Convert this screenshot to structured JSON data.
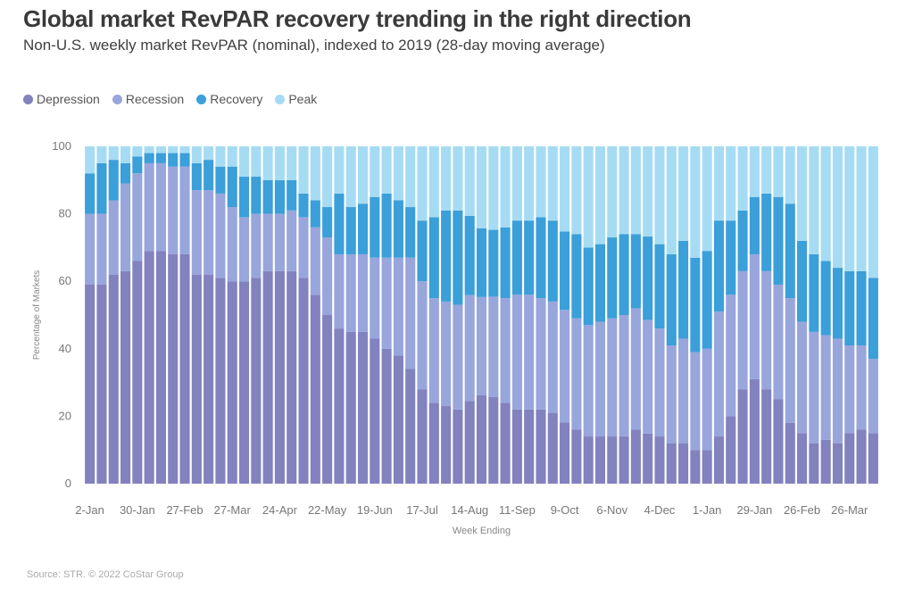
{
  "chart_data": {
    "type": "bar",
    "stacked": true,
    "title": "Global market RevPAR recovery trending in the right direction",
    "subtitle": "Non-U.S. weekly market RevPAR (nominal), indexed to 2019 (28-day moving average)",
    "xlabel": "Week Ending",
    "ylabel": "Percentage of Markets",
    "ylim": [
      0,
      100
    ],
    "yticks": [
      0,
      20,
      40,
      60,
      80,
      100
    ],
    "x_tick_labels": [
      "2-Jan",
      "30-Jan",
      "27-Feb",
      "27-Mar",
      "24-Apr",
      "22-May",
      "19-Jun",
      "17-Jul",
      "14-Aug",
      "11-Sep",
      "9-Oct",
      "6-Nov",
      "4-Dec",
      "1-Jan",
      "29-Jan",
      "26-Feb",
      "26-Mar"
    ],
    "x_tick_every": 4,
    "legend_position": "top-left",
    "series": [
      {
        "name": "Depression",
        "color": "#8282bf",
        "values": [
          59,
          59,
          62,
          63,
          66,
          69,
          69,
          68,
          68,
          62,
          62,
          61,
          60,
          60,
          61,
          63,
          63,
          63,
          61,
          56,
          50,
          46,
          45,
          45,
          43,
          40,
          38,
          34,
          28,
          24,
          23,
          22,
          25,
          27,
          26,
          24,
          22,
          22,
          22,
          21,
          18,
          16,
          14,
          14,
          14,
          14,
          16,
          15,
          14,
          12,
          12,
          10,
          10,
          14,
          20,
          28,
          31,
          28,
          25,
          18,
          15,
          12,
          13,
          12,
          15,
          16,
          15
        ]
      },
      {
        "name": "Recession",
        "color": "#98a6dc",
        "values": [
          21,
          21,
          22,
          26,
          26,
          26,
          26,
          26,
          26,
          25,
          25,
          25,
          22,
          19,
          19,
          17,
          17,
          18,
          18,
          20,
          23,
          22,
          23,
          23,
          24,
          27,
          29,
          33,
          32,
          31,
          31,
          31,
          32,
          30,
          30,
          31,
          34,
          34,
          33,
          33,
          33,
          33,
          33,
          34,
          35,
          36,
          36,
          34,
          32,
          29,
          31,
          29,
          30,
          37,
          36,
          35,
          37,
          35,
          34,
          37,
          33,
          33,
          31,
          31,
          26,
          25,
          22
        ]
      },
      {
        "name": "Recovery",
        "color": "#3b9fd9",
        "values": [
          12,
          15,
          12,
          6,
          5,
          3,
          3,
          4,
          4,
          8,
          9,
          8,
          12,
          12,
          11,
          10,
          10,
          9,
          7,
          8,
          9,
          18,
          14,
          15,
          18,
          19,
          17,
          15,
          18,
          24,
          27,
          28,
          24,
          21,
          20,
          21,
          22,
          22,
          24,
          24,
          23,
          25,
          23,
          23,
          24,
          24,
          22,
          25,
          25,
          27,
          29,
          28,
          29,
          27,
          22,
          18,
          17,
          23,
          26,
          28,
          24,
          23,
          22,
          21,
          22,
          22,
          24
        ]
      },
      {
        "name": "Peak",
        "color": "#a6dcf3",
        "values": [
          8,
          5,
          4,
          5,
          3,
          2,
          2,
          2,
          2,
          5,
          4,
          6,
          6,
          9,
          9,
          10,
          10,
          10,
          14,
          16,
          18,
          14,
          18,
          17,
          15,
          14,
          16,
          18,
          22,
          21,
          19,
          19,
          21,
          25,
          25,
          24,
          22,
          22,
          21,
          22,
          25,
          26,
          30,
          29,
          27,
          26,
          26,
          27,
          29,
          32,
          28,
          33,
          31,
          22,
          22,
          19,
          15,
          14,
          15,
          17,
          28,
          32,
          34,
          36,
          37,
          37,
          39
        ]
      }
    ]
  },
  "legend": {
    "items": [
      {
        "label": "Depression",
        "color": "#8282bf"
      },
      {
        "label": "Recession",
        "color": "#98a6dc"
      },
      {
        "label": "Recovery",
        "color": "#3b9fd9"
      },
      {
        "label": "Peak",
        "color": "#a6dcf3"
      }
    ]
  },
  "source": "Source: STR. © 2022 CoStar Group"
}
